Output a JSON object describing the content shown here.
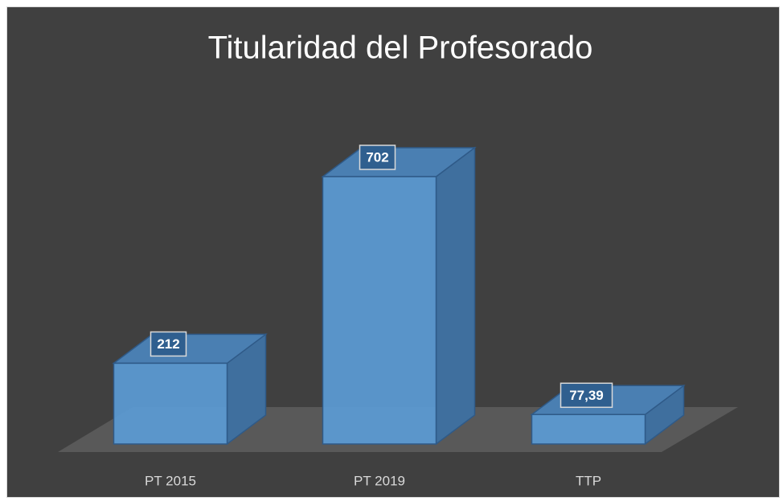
{
  "chart_data": {
    "type": "bar3d",
    "title": "Titularidad del Profesorado",
    "categories": [
      "PT 2015",
      "PT 2019",
      "TTP"
    ],
    "values": [
      212,
      702,
      77.39
    ],
    "value_labels": [
      "212",
      "702",
      "77,39"
    ],
    "color": "#5b9bd5"
  }
}
